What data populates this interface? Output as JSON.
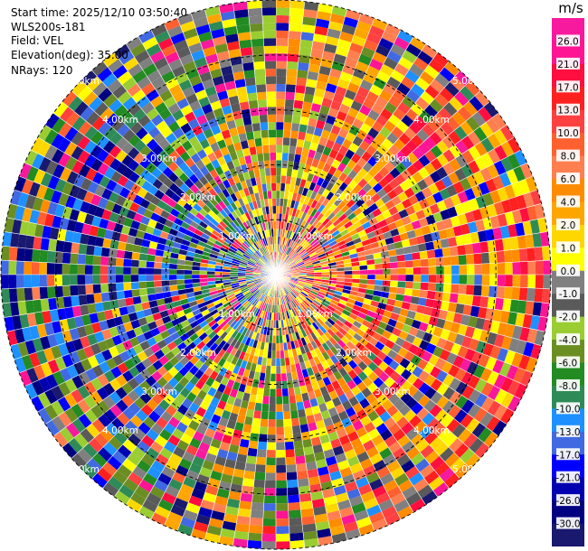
{
  "header": {
    "start_time": "Start time: 2025/12/10 03:50:40",
    "site": "WLS200s-181",
    "field": "Field: VEL",
    "elevation": "Elevation(deg): 35.00",
    "nrays": "NRays: 120"
  },
  "chart_data": {
    "type": "heatmap",
    "subtype": "polar-ppi",
    "max_range_km": 5.0,
    "range_rings_km": [
      1.0,
      2.0,
      3.0,
      4.0,
      5.0
    ],
    "ring_labels": [
      "1.00km",
      "2.00km",
      "3.00km",
      "4.00km",
      "5.00km"
    ],
    "nrays": 120,
    "colorbar": {
      "unit": "m/s",
      "ticks": [
        "26.0",
        "21.0",
        "17.0",
        "13.0",
        "10.0",
        "8.0",
        "6.0",
        "4.0",
        "2.0",
        "1.0",
        "0.0",
        "-1.0",
        "-2.0",
        "-4.0",
        "-6.0",
        "-8.0",
        "-10.0",
        "-13.0",
        "-17.0",
        "-21.0",
        "-26.0",
        "-30.0"
      ],
      "colors": [
        "#f7199e",
        "#ff1493",
        "#ff0f3f",
        "#ff2020",
        "#ff4040",
        "#ff6030",
        "#ff7f50",
        "#ff8c00",
        "#ffa500",
        "#ffd700",
        "#ffff00",
        "#808080",
        "#5a5a5a",
        "#9acd32",
        "#6b8e23",
        "#228b22",
        "#2e8b57",
        "#1e90ff",
        "#4169e1",
        "#0000ff",
        "#0000b0",
        "#000080",
        "#191970"
      ]
    }
  }
}
